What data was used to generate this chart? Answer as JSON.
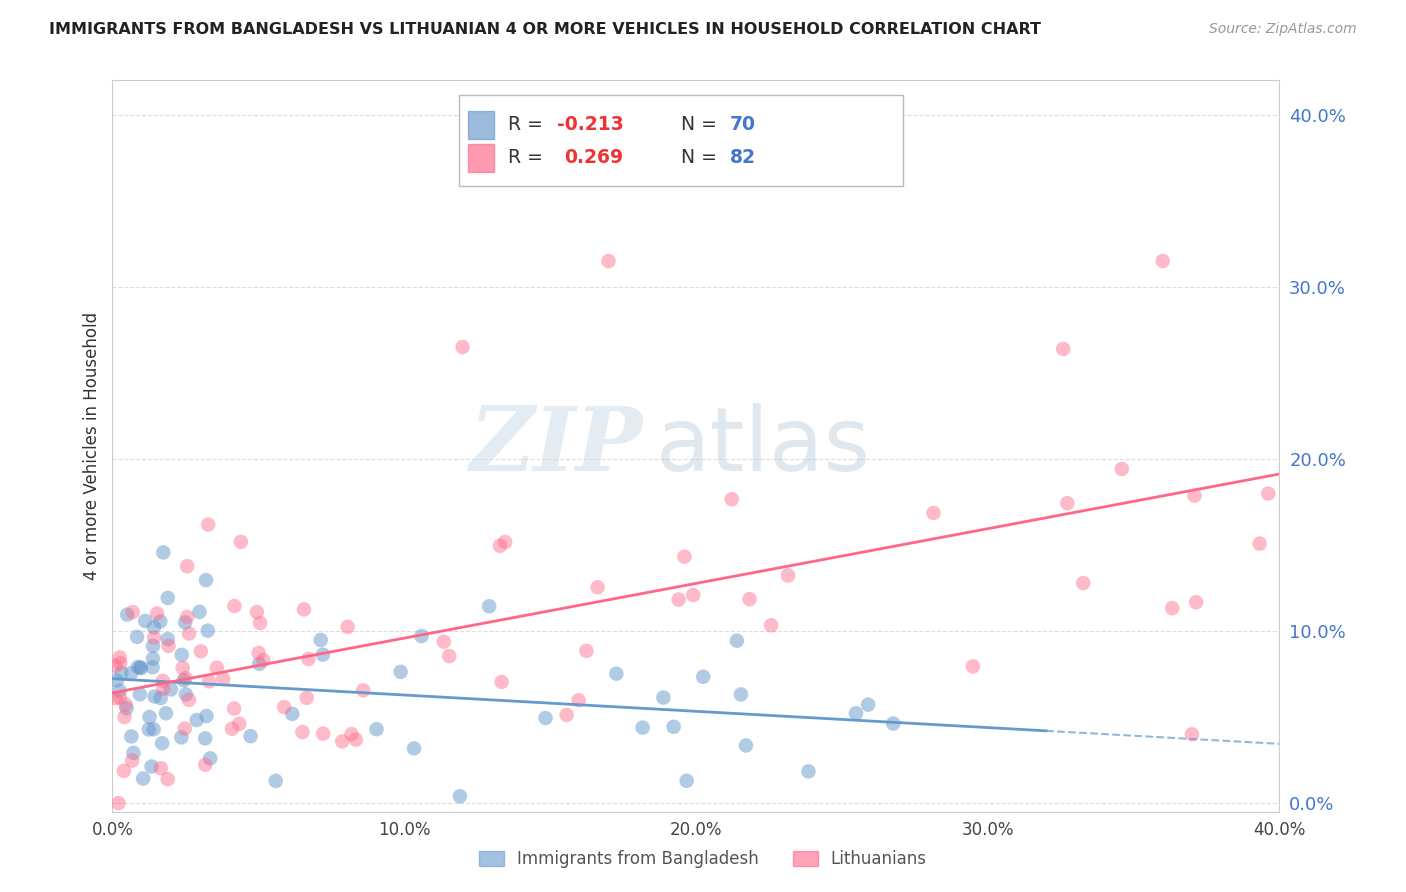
{
  "title": "IMMIGRANTS FROM BANGLADESH VS LITHUANIAN 4 OR MORE VEHICLES IN HOUSEHOLD CORRELATION CHART",
  "source": "Source: ZipAtlas.com",
  "ylabel": "4 or more Vehicles in Household",
  "legend_label1": "Immigrants from Bangladesh",
  "legend_label2": "Lithuanians",
  "legend_r1_label": "R = ",
  "legend_r1_val": "-0.213",
  "legend_n1_label": "N = ",
  "legend_n1_val": "70",
  "legend_r2_label": "R =  ",
  "legend_r2_val": "0.269",
  "legend_n2_label": "N = ",
  "legend_n2_val": "82",
  "color_blue": "#6699CC",
  "color_pink": "#FF6688",
  "color_right_axis": "#4477CC",
  "color_r_val": "#EE3333",
  "color_n_val": "#4477CC",
  "xlim": [
    0.0,
    0.4
  ],
  "ylim": [
    -0.005,
    0.42
  ],
  "xticks": [
    0.0,
    0.1,
    0.2,
    0.3,
    0.4
  ],
  "yticks_right": [
    0.0,
    0.1,
    0.2,
    0.3,
    0.4
  ],
  "ytick_labels_right": [
    "0.0%",
    "10.0%",
    "20.0%",
    "30.0%",
    "40.0%"
  ],
  "xtick_labels": [
    "0.0%",
    "10.0%",
    "20.0%",
    "30.0%",
    "40.0%"
  ],
  "watermark_zip": "ZIP",
  "watermark_atlas": "atlas",
  "bg_color": "#FFFFFF",
  "grid_color": "#DDDDDD",
  "reg_line_end_bang": 0.32,
  "reg_line_dash_start_bang": 0.32,
  "reg_line_end_lith": 0.4
}
